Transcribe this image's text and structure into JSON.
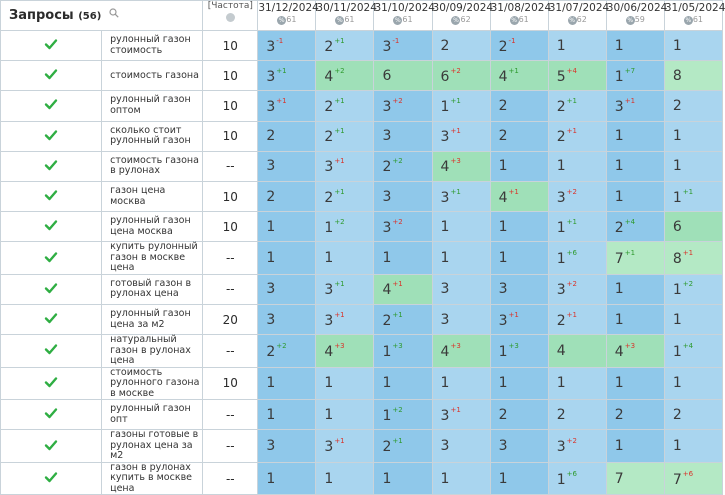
{
  "header": {
    "queries_label": "Запросы",
    "queries_count": "(56)",
    "frequency_label": "[Частота]",
    "dates": [
      {
        "date": "31/12/2024",
        "pct": "61"
      },
      {
        "date": "30/11/2024",
        "pct": "61"
      },
      {
        "date": "31/10/2024",
        "pct": "61"
      },
      {
        "date": "30/09/2024",
        "pct": "62"
      },
      {
        "date": "31/08/2024",
        "pct": "61"
      },
      {
        "date": "31/07/2024",
        "pct": "62"
      },
      {
        "date": "30/06/2024",
        "pct": "59"
      },
      {
        "date": "31/05/2024",
        "pct": "61"
      }
    ]
  },
  "rows": [
    {
      "keyword": "рулонный газон стоимость",
      "freq": "10",
      "cells": [
        [
          "3",
          "-1",
          "down",
          "a"
        ],
        [
          "2",
          "+1",
          "up",
          "b"
        ],
        [
          "3",
          "-1",
          "down",
          "a"
        ],
        [
          "2",
          "",
          "",
          "b"
        ],
        [
          "2",
          "-1",
          "down",
          "a"
        ],
        [
          "1",
          "",
          "",
          "b"
        ],
        [
          "1",
          "",
          "",
          "a"
        ],
        [
          "1",
          "",
          "",
          "b"
        ]
      ]
    },
    {
      "keyword": "стоимость газона",
      "freq": "10",
      "cells": [
        [
          "3",
          "+1",
          "up",
          "a"
        ],
        [
          "4",
          "+2",
          "up",
          "g"
        ],
        [
          "6",
          "",
          "",
          "g"
        ],
        [
          "6",
          "+2",
          "down",
          "g"
        ],
        [
          "4",
          "+1",
          "up",
          "g"
        ],
        [
          "5",
          "+4",
          "down",
          "g"
        ],
        [
          "1",
          "+7",
          "up",
          "a"
        ],
        [
          "8",
          "",
          "",
          "g2"
        ]
      ]
    },
    {
      "keyword": "рулонный газон оптом",
      "freq": "10",
      "cells": [
        [
          "3",
          "+1",
          "down",
          "a"
        ],
        [
          "2",
          "+1",
          "up",
          "b"
        ],
        [
          "3",
          "+2",
          "down",
          "a"
        ],
        [
          "1",
          "+1",
          "up",
          "b"
        ],
        [
          "2",
          "",
          "",
          "a"
        ],
        [
          "2",
          "+1",
          "up",
          "b"
        ],
        [
          "3",
          "+1",
          "down",
          "a"
        ],
        [
          "2",
          "",
          "",
          "b"
        ]
      ]
    },
    {
      "keyword": "сколько стоит рулонный газон",
      "freq": "10",
      "cells": [
        [
          "2",
          "",
          "",
          "a"
        ],
        [
          "2",
          "+1",
          "up",
          "b"
        ],
        [
          "3",
          "",
          "",
          "a"
        ],
        [
          "3",
          "+1",
          "down",
          "b"
        ],
        [
          "2",
          "",
          "",
          "a"
        ],
        [
          "2",
          "+1",
          "down",
          "b"
        ],
        [
          "1",
          "",
          "",
          "a"
        ],
        [
          "1",
          "",
          "",
          "b"
        ]
      ]
    },
    {
      "keyword": "стоимость газона в рулонах",
      "freq": "--",
      "cells": [
        [
          "3",
          "",
          "",
          "a"
        ],
        [
          "3",
          "+1",
          "down",
          "b"
        ],
        [
          "2",
          "+2",
          "up",
          "a"
        ],
        [
          "4",
          "+3",
          "down",
          "g"
        ],
        [
          "1",
          "",
          "",
          "a"
        ],
        [
          "1",
          "",
          "",
          "b"
        ],
        [
          "1",
          "",
          "",
          "a"
        ],
        [
          "1",
          "",
          "",
          "b"
        ]
      ]
    },
    {
      "keyword": "газон цена москва",
      "freq": "10",
      "cells": [
        [
          "2",
          "",
          "",
          "a"
        ],
        [
          "2",
          "+1",
          "up",
          "b"
        ],
        [
          "3",
          "",
          "",
          "a"
        ],
        [
          "3",
          "+1",
          "up",
          "b"
        ],
        [
          "4",
          "+1",
          "down",
          "g"
        ],
        [
          "3",
          "+2",
          "down",
          "b"
        ],
        [
          "1",
          "",
          "",
          "a"
        ],
        [
          "1",
          "+1",
          "up",
          "b"
        ]
      ]
    },
    {
      "keyword": "рулонный газон цена москва",
      "freq": "10",
      "cells": [
        [
          "1",
          "",
          "",
          "a"
        ],
        [
          "1",
          "+2",
          "up",
          "b"
        ],
        [
          "3",
          "+2",
          "down",
          "a"
        ],
        [
          "1",
          "",
          "",
          "b"
        ],
        [
          "1",
          "",
          "",
          "a"
        ],
        [
          "1",
          "+1",
          "up",
          "b"
        ],
        [
          "2",
          "+4",
          "up",
          "a"
        ],
        [
          "6",
          "",
          "",
          "g"
        ]
      ]
    },
    {
      "keyword": "купить рулонный газон в москве цена",
      "freq": "--",
      "cells": [
        [
          "1",
          "",
          "",
          "a"
        ],
        [
          "1",
          "",
          "",
          "b"
        ],
        [
          "1",
          "",
          "",
          "a"
        ],
        [
          "1",
          "",
          "",
          "b"
        ],
        [
          "1",
          "",
          "",
          "a"
        ],
        [
          "1",
          "+6",
          "up",
          "b"
        ],
        [
          "7",
          "+1",
          "up",
          "g2"
        ],
        [
          "8",
          "+1",
          "down",
          "g2"
        ]
      ]
    },
    {
      "keyword": "готовый газон в рулонах цена",
      "freq": "--",
      "cells": [
        [
          "3",
          "",
          "",
          "a"
        ],
        [
          "3",
          "+1",
          "up",
          "b"
        ],
        [
          "4",
          "+1",
          "down",
          "g"
        ],
        [
          "3",
          "",
          "",
          "b"
        ],
        [
          "3",
          "",
          "",
          "a"
        ],
        [
          "3",
          "+2",
          "down",
          "b"
        ],
        [
          "1",
          "",
          "",
          "a"
        ],
        [
          "1",
          "+2",
          "up",
          "b"
        ]
      ]
    },
    {
      "keyword": "рулонный газон цена за м2",
      "freq": "20",
      "cells": [
        [
          "3",
          "",
          "",
          "a"
        ],
        [
          "3",
          "+1",
          "down",
          "b"
        ],
        [
          "2",
          "+1",
          "up",
          "a"
        ],
        [
          "3",
          "",
          "",
          "b"
        ],
        [
          "3",
          "+1",
          "down",
          "a"
        ],
        [
          "2",
          "+1",
          "down",
          "b"
        ],
        [
          "1",
          "",
          "",
          "a"
        ],
        [
          "1",
          "",
          "",
          "b"
        ]
      ]
    },
    {
      "keyword": "натуральный газон в рулонах цена",
      "freq": "--",
      "cells": [
        [
          "2",
          "+2",
          "up",
          "a"
        ],
        [
          "4",
          "+3",
          "down",
          "g"
        ],
        [
          "1",
          "+3",
          "up",
          "a"
        ],
        [
          "4",
          "+3",
          "down",
          "g"
        ],
        [
          "1",
          "+3",
          "up",
          "a"
        ],
        [
          "4",
          "",
          "",
          "g"
        ],
        [
          "4",
          "+3",
          "down",
          "g"
        ],
        [
          "1",
          "+4",
          "up",
          "b"
        ]
      ]
    },
    {
      "keyword": "стоимость рулонного газона в москве",
      "freq": "10",
      "cells": [
        [
          "1",
          "",
          "",
          "a"
        ],
        [
          "1",
          "",
          "",
          "b"
        ],
        [
          "1",
          "",
          "",
          "a"
        ],
        [
          "1",
          "",
          "",
          "b"
        ],
        [
          "1",
          "",
          "",
          "a"
        ],
        [
          "1",
          "",
          "",
          "b"
        ],
        [
          "1",
          "",
          "",
          "a"
        ],
        [
          "1",
          "",
          "",
          "b"
        ]
      ]
    },
    {
      "keyword": "рулонный газон опт",
      "freq": "--",
      "cells": [
        [
          "1",
          "",
          "",
          "a"
        ],
        [
          "1",
          "",
          "",
          "b"
        ],
        [
          "1",
          "+2",
          "up",
          "a"
        ],
        [
          "3",
          "+1",
          "down",
          "b"
        ],
        [
          "2",
          "",
          "",
          "a"
        ],
        [
          "2",
          "",
          "",
          "b"
        ],
        [
          "2",
          "",
          "",
          "a"
        ],
        [
          "2",
          "",
          "",
          "b"
        ]
      ]
    },
    {
      "keyword": "газоны готовые в рулонах цена за м2",
      "freq": "--",
      "cells": [
        [
          "3",
          "",
          "",
          "a"
        ],
        [
          "3",
          "+1",
          "down",
          "b"
        ],
        [
          "2",
          "+1",
          "up",
          "a"
        ],
        [
          "3",
          "",
          "",
          "b"
        ],
        [
          "3",
          "",
          "",
          "a"
        ],
        [
          "3",
          "+2",
          "down",
          "b"
        ],
        [
          "1",
          "",
          "",
          "a"
        ],
        [
          "1",
          "",
          "",
          "b"
        ]
      ]
    },
    {
      "keyword": "газон в рулонах купить в москве цена",
      "freq": "--",
      "cells": [
        [
          "1",
          "",
          "",
          "a"
        ],
        [
          "1",
          "",
          "",
          "b"
        ],
        [
          "1",
          "",
          "",
          "a"
        ],
        [
          "1",
          "",
          "",
          "b"
        ],
        [
          "1",
          "",
          "",
          "a"
        ],
        [
          "1",
          "+6",
          "up",
          "b"
        ],
        [
          "7",
          "",
          "",
          "g2"
        ],
        [
          "7",
          "+6",
          "down",
          "g2"
        ]
      ]
    }
  ]
}
